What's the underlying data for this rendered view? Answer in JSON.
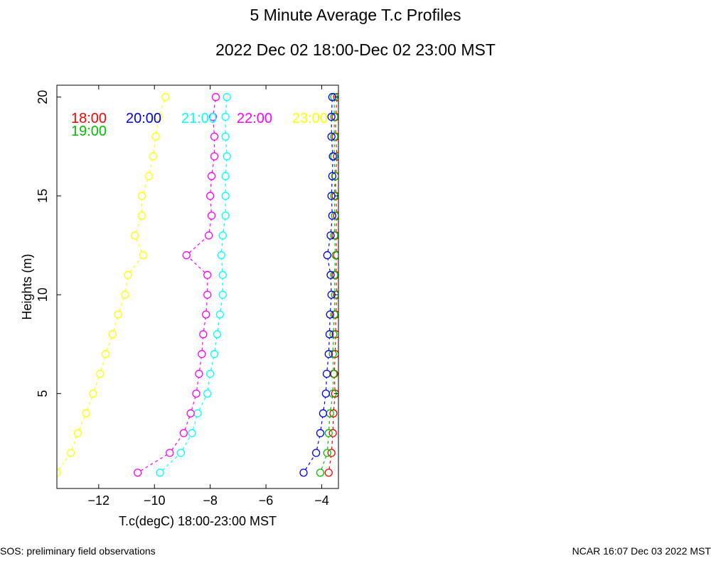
{
  "header": {
    "title": "5 Minute Average T.c Profiles",
    "subtitle": "2022 Dec 02 18:00-Dec 02 23:00 MST"
  },
  "footer": {
    "left": "SOS: preliminary field observations",
    "right": "NCAR 16:07 Dec 03 2022 MST"
  },
  "chart_data": {
    "type": "line",
    "title": "5 Minute Average T.c Profiles",
    "subtitle": "2022 Dec 02 18:00-Dec 02 23:00 MST",
    "xlabel": "T.c(degC) 18:00-23:00 MST",
    "ylabel": "Heights (m)",
    "xlim": [
      -13.5,
      -3.4
    ],
    "ylim": [
      0.2,
      20.6
    ],
    "xticks": [
      -12,
      -10,
      -8,
      -6,
      -4
    ],
    "yticks": [
      5,
      10,
      15,
      20
    ],
    "grid": false,
    "legend_position": "top, inside plot",
    "marker": "open circle",
    "line_style": "dashed",
    "heights": [
      1,
      2,
      3,
      4,
      5,
      6,
      7,
      8,
      9,
      10,
      11,
      12,
      13,
      14,
      15,
      16,
      17,
      18,
      19,
      20
    ],
    "series": [
      {
        "name": "18:00",
        "color": "#ff0000",
        "values": [
          -3.75,
          -3.65,
          -3.6,
          -3.58,
          -3.52,
          -3.55,
          -3.52,
          -3.5,
          -3.5,
          -3.45,
          -3.5,
          -3.45,
          -3.5,
          -3.45,
          -3.5,
          -3.5,
          -3.45,
          -3.5,
          -3.5,
          -3.45
        ]
      },
      {
        "name": "19:00",
        "color": "#00c000",
        "values": [
          -4.05,
          -3.8,
          -3.75,
          -3.7,
          -3.6,
          -3.58,
          -3.6,
          -3.58,
          -3.55,
          -3.52,
          -3.55,
          -3.5,
          -3.55,
          -3.52,
          -3.55,
          -3.52,
          -3.55,
          -3.55,
          -3.55,
          -3.55
        ]
      },
      {
        "name": "20:00",
        "color": "#0000ff",
        "values": [
          -4.65,
          -4.2,
          -4.05,
          -3.95,
          -3.85,
          -3.82,
          -3.75,
          -3.72,
          -3.7,
          -3.65,
          -3.68,
          -3.8,
          -3.68,
          -3.62,
          -3.65,
          -3.62,
          -3.6,
          -3.65,
          -3.65,
          -3.62
        ]
      },
      {
        "name": "21:00",
        "color": "#00ffff",
        "values": [
          -9.8,
          -9.05,
          -8.65,
          -8.45,
          -8.1,
          -8.0,
          -7.85,
          -7.75,
          -7.65,
          -7.55,
          -7.55,
          -7.6,
          -7.55,
          -7.45,
          -7.45,
          -7.45,
          -7.4,
          -7.45,
          -7.45,
          -7.4
        ]
      },
      {
        "name": "22:00",
        "color": "#ff00ff",
        "values": [
          -10.6,
          -9.45,
          -8.95,
          -8.7,
          -8.5,
          -8.4,
          -8.3,
          -8.25,
          -8.15,
          -8.1,
          -8.1,
          -8.85,
          -8.05,
          -7.95,
          -8.0,
          -7.95,
          -7.85,
          -7.85,
          -7.9,
          -7.8
        ]
      },
      {
        "name": "23:00",
        "color": "#ffff00",
        "values": [
          -13.5,
          -13.0,
          -12.75,
          -12.45,
          -12.2,
          -11.95,
          -11.75,
          -11.5,
          -11.3,
          -11.05,
          -10.95,
          -10.4,
          -10.7,
          -10.45,
          -10.45,
          -10.2,
          -10.05,
          -9.95,
          -9.85,
          -9.6
        ]
      }
    ],
    "legend": [
      {
        "label": "18:00",
        "color": "#ff0000"
      },
      {
        "label": "19:00",
        "color": "#00c000"
      },
      {
        "label": "20:00",
        "color": "#0000ff"
      },
      {
        "label": "21:00",
        "color": "#00ffff"
      },
      {
        "label": "22:00",
        "color": "#ff00ff"
      },
      {
        "label": "23:00",
        "color": "#ffff00"
      }
    ]
  }
}
